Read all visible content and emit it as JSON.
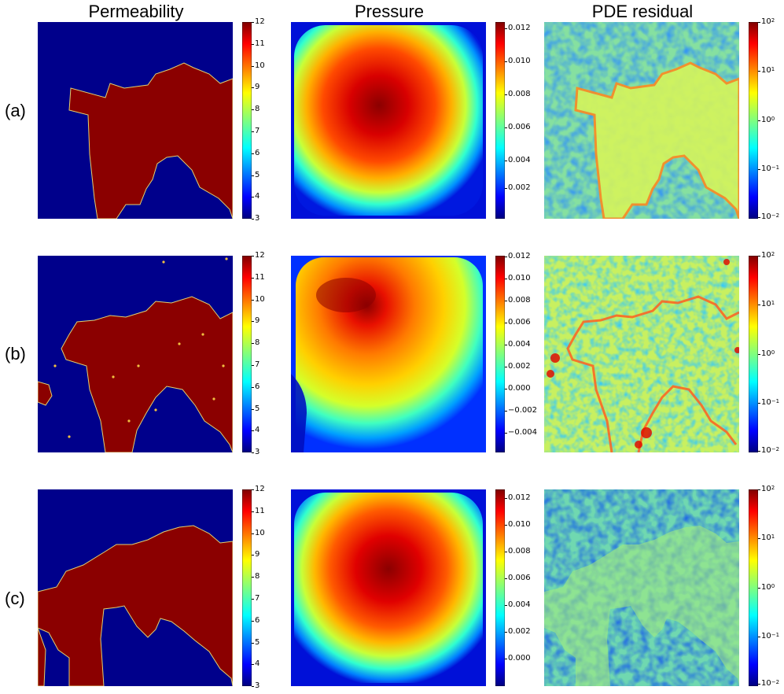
{
  "columns": [
    {
      "id": "perm",
      "title": "Permeability"
    },
    {
      "id": "pres",
      "title": "Pressure"
    },
    {
      "id": "res",
      "title": "PDE residual"
    }
  ],
  "rows": [
    {
      "label": "(a)",
      "perm_ticks": [
        "12",
        "11",
        "10",
        "9",
        "8",
        "7",
        "6",
        "5",
        "4",
        "3"
      ],
      "pres_ticks": [
        "0.012",
        "0.010",
        "0.008",
        "0.006",
        "0.004",
        "0.002"
      ],
      "pres_range": [
        0.0001,
        0.0124
      ],
      "res_ticks": [
        "10",
        "10",
        "10",
        "10",
        "10"
      ],
      "res_exps": [
        "2",
        "1",
        "0",
        "−1",
        "−2"
      ]
    },
    {
      "label": "(b)",
      "perm_ticks": [
        "12",
        "11",
        "10",
        "9",
        "8",
        "7",
        "6",
        "5",
        "4",
        "3"
      ],
      "pres_ticks": [
        "0.012",
        "0.010",
        "0.008",
        "0.006",
        "0.004",
        "0.002",
        "0.000",
        "−0.002",
        "−0.004"
      ],
      "pres_range": [
        -0.0057,
        0.012
      ],
      "res_ticks": [
        "10",
        "10",
        "10",
        "10",
        "10"
      ],
      "res_exps": [
        "2",
        "1",
        "0",
        "−1",
        "−2"
      ]
    },
    {
      "label": "(c)",
      "perm_ticks": [
        "12",
        "11",
        "10",
        "9",
        "8",
        "7",
        "6",
        "5",
        "4",
        "3"
      ],
      "pres_ticks": [
        "0.012",
        "0.010",
        "0.008",
        "0.006",
        "0.004",
        "0.002",
        "0.000"
      ],
      "pres_range": [
        -0.0013,
        0.0131
      ],
      "res_ticks": [
        "10",
        "10",
        "10",
        "10",
        "10"
      ],
      "res_exps": [
        "2",
        "1",
        "0",
        "−1",
        "−2"
      ]
    }
  ],
  "colors": {
    "jet_low": "#00007f",
    "jet_high": "#7f0000",
    "perm_low": "#00008b",
    "perm_high": "#8b0000"
  },
  "perm_range": [
    3,
    12
  ],
  "res_range_log10": [
    -2,
    2
  ]
}
